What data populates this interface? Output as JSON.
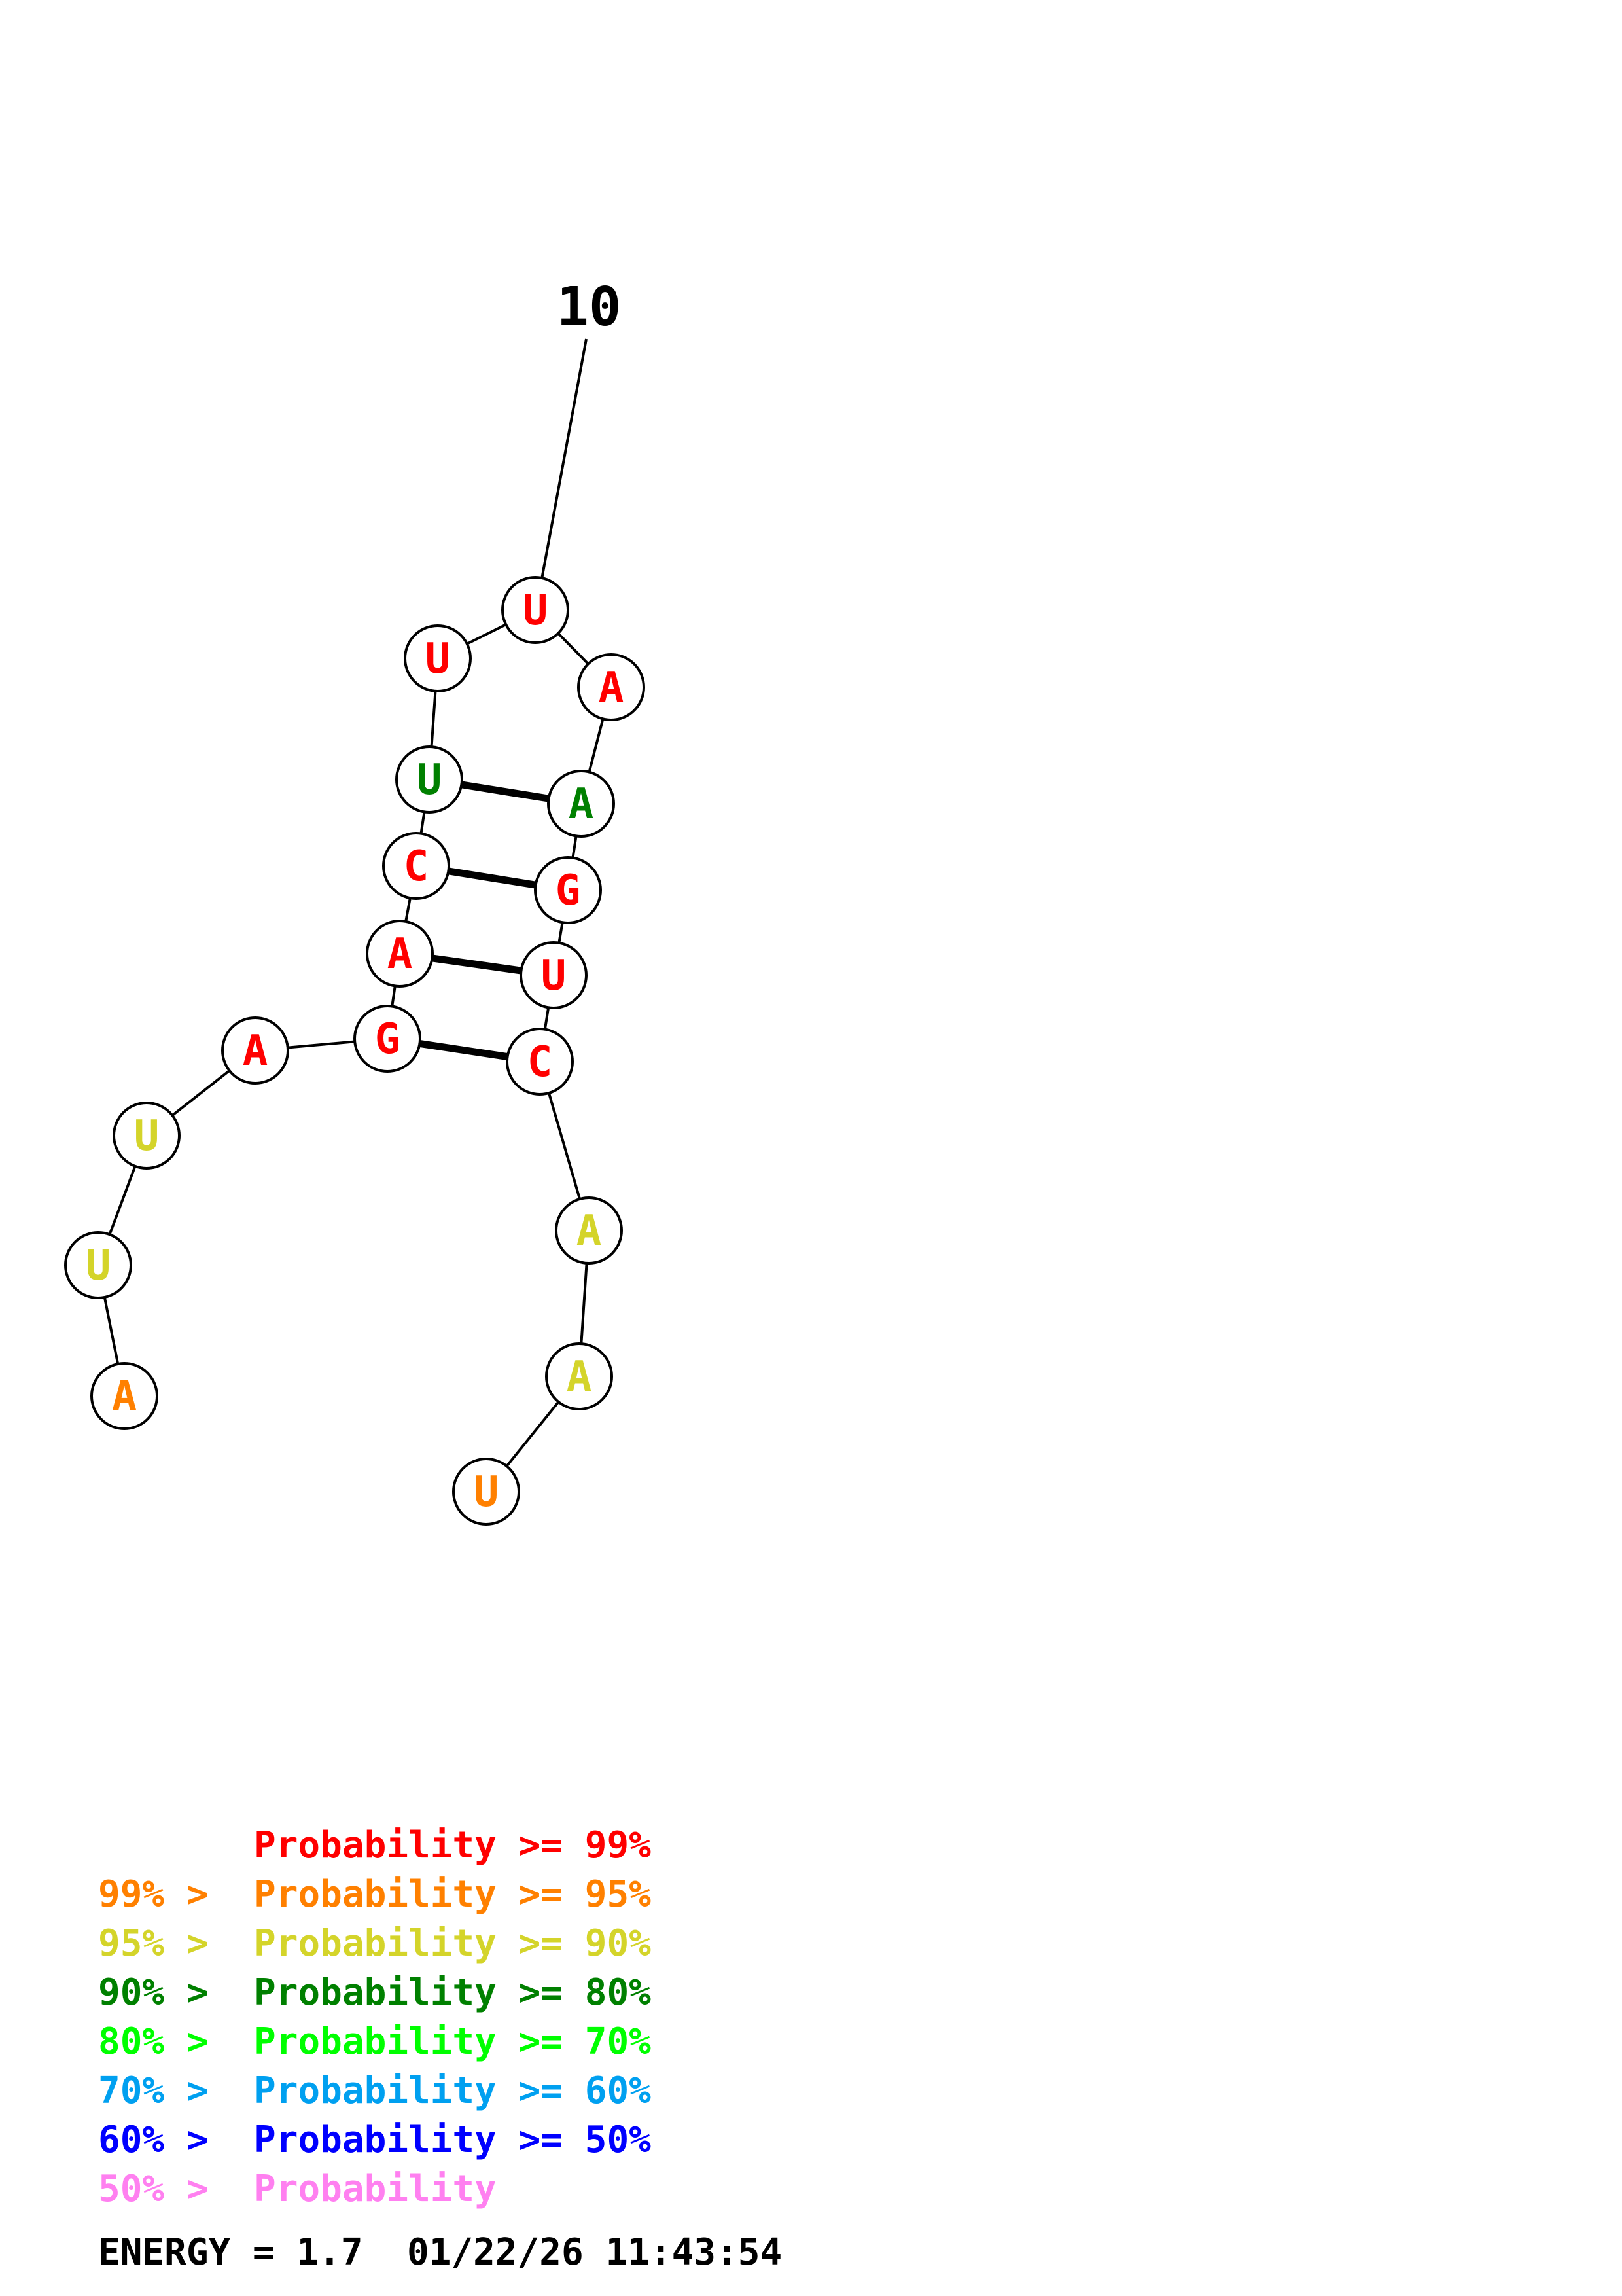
{
  "diagram": {
    "type": "rna-secondary-structure",
    "sequence": [
      "A",
      "U",
      "U",
      "A",
      "G",
      "A",
      "C",
      "U",
      "U",
      "U",
      "A",
      "A",
      "G",
      "U",
      "C",
      "A",
      "A",
      "U"
    ],
    "nucleotides": [
      {
        "n": 1,
        "base": "A",
        "color": "#ff8000"
      },
      {
        "n": 2,
        "base": "U",
        "color": "#d4d42a"
      },
      {
        "n": 3,
        "base": "U",
        "color": "#d4d42a"
      },
      {
        "n": 4,
        "base": "A",
        "color": "#ff0000"
      },
      {
        "n": 5,
        "base": "G",
        "color": "#ff0000"
      },
      {
        "n": 6,
        "base": "A",
        "color": "#ff0000"
      },
      {
        "n": 7,
        "base": "C",
        "color": "#ff0000"
      },
      {
        "n": 8,
        "base": "U",
        "color": "#008000"
      },
      {
        "n": 9,
        "base": "U",
        "color": "#ff0000"
      },
      {
        "n": 10,
        "base": "U",
        "color": "#ff0000"
      },
      {
        "n": 11,
        "base": "A",
        "color": "#ff0000"
      },
      {
        "n": 12,
        "base": "A",
        "color": "#008000"
      },
      {
        "n": 13,
        "base": "G",
        "color": "#ff0000"
      },
      {
        "n": 14,
        "base": "U",
        "color": "#ff0000"
      },
      {
        "n": 15,
        "base": "C",
        "color": "#ff0000"
      },
      {
        "n": 16,
        "base": "A",
        "color": "#d4d42a"
      },
      {
        "n": 17,
        "base": "A",
        "color": "#d4d42a"
      },
      {
        "n": 18,
        "base": "U",
        "color": "#ff8000"
      }
    ],
    "pairs": [
      [
        5,
        15
      ],
      [
        6,
        14
      ],
      [
        7,
        13
      ],
      [
        8,
        12
      ]
    ],
    "index_label": "10"
  },
  "legend": [
    {
      "prefix": "    ",
      "label": "Probability >= 99%",
      "color": "#ff0000"
    },
    {
      "prefix": "99% > ",
      "label": "Probability >= 95%",
      "color": "#ff8000"
    },
    {
      "prefix": "95% > ",
      "label": "Probability >= 90%",
      "color": "#d4d42a"
    },
    {
      "prefix": "90% > ",
      "label": "Probability >= 80%",
      "color": "#008000"
    },
    {
      "prefix": "80% > ",
      "label": "Probability >= 70%",
      "color": "#00ff00"
    },
    {
      "prefix": "70% > ",
      "label": "Probability >= 60%",
      "color": "#00a0f0"
    },
    {
      "prefix": "60% > ",
      "label": "Probability >= 50%",
      "color": "#0000ff"
    },
    {
      "prefix": "50% > ",
      "label": "Probability",
      "color": "#ff80f0"
    }
  ],
  "footer": {
    "energy": "ENERGY = 1.7  01/22/26 11:43:54"
  }
}
